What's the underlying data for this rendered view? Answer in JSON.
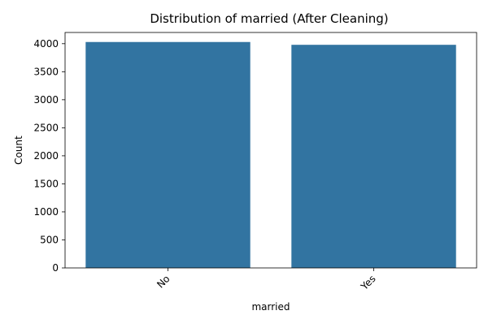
{
  "chart_data": {
    "type": "bar",
    "title": "Distribution of married (After Cleaning)",
    "xlabel": "married",
    "ylabel": "Count",
    "categories": [
      "No",
      "Yes"
    ],
    "values": [
      4030,
      3980
    ],
    "ylim": [
      0,
      4200
    ],
    "yticks": [
      0,
      500,
      1000,
      1500,
      2000,
      2500,
      3000,
      3500,
      4000
    ],
    "bar_color": "#3274a1",
    "grid": false,
    "legend": "none"
  }
}
